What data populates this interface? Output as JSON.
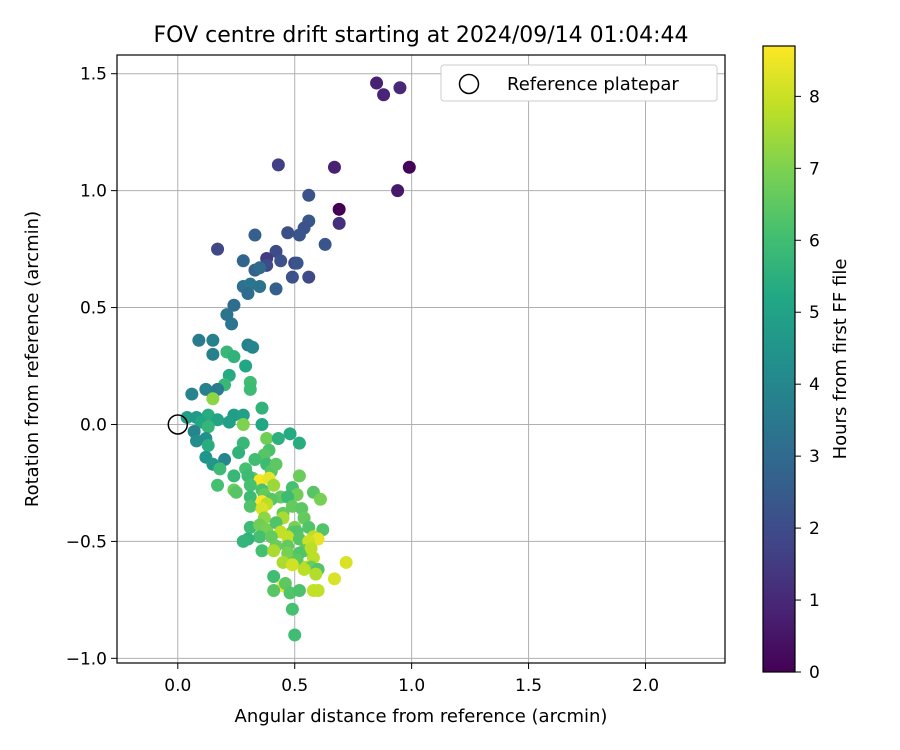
{
  "chart_data": {
    "type": "scatter",
    "title": "FOV centre drift starting at 2024/09/14 01:04:44",
    "xlabel": "Angular distance from reference (arcmin)",
    "ylabel": "Rotation from reference (arcmin)",
    "xlim": [
      -0.26,
      2.34
    ],
    "ylim": [
      -1.02,
      1.58
    ],
    "x_ticks": [
      "0.0",
      "0.5",
      "1.0",
      "1.5",
      "2.0"
    ],
    "x_tick_values": [
      0,
      0.5,
      1.0,
      1.5,
      2.0
    ],
    "y_ticks": [
      "−1.0",
      "−0.5",
      "0.0",
      "0.5",
      "1.0",
      "1.5"
    ],
    "y_tick_values": [
      -1.0,
      -0.5,
      0,
      0.5,
      1.0,
      1.5
    ],
    "grid": true,
    "legend": {
      "placement": "top-right",
      "label": "Reference platepar"
    },
    "reference_point": {
      "x": 0,
      "y": 0
    },
    "colorbar": {
      "label": "Hours from first FF file",
      "colormap": "viridis",
      "range": [
        0,
        8.7
      ],
      "ticks": [
        "0",
        "1",
        "2",
        "3",
        "4",
        "5",
        "6",
        "7",
        "8"
      ],
      "tick_values": [
        0,
        1,
        2,
        3,
        4,
        5,
        6,
        7,
        8
      ]
    },
    "points": [
      [
        0.69,
        0.92,
        0.0
      ],
      [
        0.99,
        1.1,
        0.1
      ],
      [
        0.94,
        1.0,
        0.6
      ],
      [
        0.85,
        1.46,
        0.8
      ],
      [
        0.88,
        1.41,
        0.9
      ],
      [
        0.95,
        1.44,
        1.0
      ],
      [
        0.67,
        1.1,
        0.8
      ],
      [
        0.69,
        0.86,
        1.2
      ],
      [
        0.43,
        1.11,
        1.6
      ],
      [
        0.56,
        0.98,
        2.2
      ],
      [
        0.47,
        0.82,
        2.1
      ],
      [
        0.56,
        0.87,
        2.4
      ],
      [
        0.54,
        0.84,
        2.2
      ],
      [
        0.52,
        0.81,
        2.3
      ],
      [
        0.63,
        0.77,
        2.3
      ],
      [
        0.17,
        0.75,
        1.9
      ],
      [
        0.42,
        0.74,
        2.0
      ],
      [
        0.38,
        0.71,
        1.5
      ],
      [
        0.38,
        0.68,
        2.0
      ],
      [
        0.44,
        0.7,
        2.2
      ],
      [
        0.5,
        0.69,
        1.8
      ],
      [
        0.51,
        0.69,
        2.3
      ],
      [
        0.33,
        0.81,
        2.6
      ],
      [
        0.28,
        0.7,
        2.8
      ],
      [
        0.33,
        0.66,
        2.7
      ],
      [
        0.35,
        0.67,
        3.0
      ],
      [
        0.35,
        0.59,
        3.3
      ],
      [
        0.49,
        0.63,
        2.2
      ],
      [
        0.56,
        0.63,
        1.9
      ],
      [
        0.28,
        0.59,
        3.2
      ],
      [
        0.31,
        0.6,
        3.4
      ],
      [
        0.42,
        0.58,
        2.6
      ],
      [
        0.3,
        0.56,
        3.1
      ],
      [
        0.24,
        0.51,
        3.1
      ],
      [
        0.21,
        0.47,
        3.3
      ],
      [
        0.23,
        0.43,
        3.4
      ],
      [
        0.09,
        0.36,
        3.6
      ],
      [
        0.15,
        0.36,
        3.8
      ],
      [
        0.3,
        0.34,
        3.8
      ],
      [
        0.32,
        0.33,
        3.9
      ],
      [
        0.15,
        0.3,
        3.8
      ],
      [
        0.21,
        0.31,
        5.8
      ],
      [
        0.24,
        0.29,
        5.6
      ],
      [
        0.29,
        0.25,
        5.2
      ],
      [
        0.22,
        0.21,
        5.3
      ],
      [
        0.2,
        0.17,
        5.8
      ],
      [
        0.31,
        0.18,
        6.0
      ],
      [
        0.31,
        0.15,
        5.9
      ],
      [
        0.12,
        0.15,
        3.8
      ],
      [
        0.17,
        0.15,
        3.6
      ],
      [
        0.06,
        0.13,
        3.9
      ],
      [
        0.15,
        0.11,
        7.2
      ],
      [
        0.36,
        0.07,
        5.6
      ],
      [
        0.13,
        0.04,
        5.4
      ],
      [
        0.24,
        0.04,
        4.8
      ],
      [
        0.28,
        0.04,
        4.9
      ],
      [
        0.04,
        0.03,
        4.9
      ],
      [
        0.08,
        0.03,
        4.7
      ],
      [
        0.17,
        0.02,
        5.1
      ],
      [
        0.1,
        0.01,
        5.2
      ],
      [
        0.22,
        0.01,
        4.9
      ],
      [
        0.28,
        0.0,
        7.0
      ],
      [
        0.36,
        0.0,
        5.2
      ],
      [
        0.13,
        -0.01,
        5.7
      ],
      [
        0.07,
        -0.03,
        3.9
      ],
      [
        0.48,
        -0.04,
        5.3
      ],
      [
        0.12,
        -0.06,
        4.3
      ],
      [
        0.38,
        -0.06,
        6.8
      ],
      [
        0.43,
        -0.06,
        5.5
      ],
      [
        0.08,
        -0.07,
        4.2
      ],
      [
        0.28,
        -0.08,
        5.8
      ],
      [
        0.52,
        -0.08,
        5.4
      ],
      [
        0.13,
        -0.09,
        5.4
      ],
      [
        0.39,
        -0.11,
        6.2
      ],
      [
        0.26,
        -0.12,
        5.6
      ],
      [
        0.37,
        -0.13,
        6.4
      ],
      [
        0.12,
        -0.14,
        4.5
      ],
      [
        0.2,
        -0.15,
        4.0
      ],
      [
        0.33,
        -0.15,
        6.0
      ],
      [
        0.15,
        -0.17,
        4.6
      ],
      [
        0.38,
        -0.17,
        5.9
      ],
      [
        0.29,
        -0.19,
        6.1
      ],
      [
        0.18,
        -0.19,
        5.9
      ],
      [
        0.4,
        -0.2,
        6.4
      ],
      [
        0.42,
        -0.17,
        6.5
      ],
      [
        0.24,
        -0.22,
        5.8
      ],
      [
        0.32,
        -0.23,
        6.5
      ],
      [
        0.35,
        -0.24,
        8.6
      ],
      [
        0.39,
        -0.23,
        8.4
      ],
      [
        0.3,
        -0.22,
        5.9
      ],
      [
        0.52,
        -0.22,
        6.7
      ],
      [
        0.17,
        -0.26,
        6.1
      ],
      [
        0.31,
        -0.26,
        6.1
      ],
      [
        0.41,
        -0.26,
        7.4
      ],
      [
        0.49,
        -0.27,
        6.1
      ],
      [
        0.24,
        -0.28,
        6.7
      ],
      [
        0.36,
        -0.28,
        6.2
      ],
      [
        0.25,
        -0.29,
        6.4
      ],
      [
        0.37,
        -0.3,
        6.6
      ],
      [
        0.51,
        -0.3,
        6.8
      ],
      [
        0.31,
        -0.31,
        5.9
      ],
      [
        0.44,
        -0.31,
        6.6
      ],
      [
        0.47,
        -0.31,
        5.9
      ],
      [
        0.4,
        -0.32,
        6.4
      ],
      [
        0.58,
        -0.29,
        6.4
      ],
      [
        0.61,
        -0.32,
        6.9
      ],
      [
        0.36,
        -0.33,
        8.7
      ],
      [
        0.38,
        -0.34,
        7.8
      ],
      [
        0.31,
        -0.35,
        6.3
      ],
      [
        0.49,
        -0.35,
        6.6
      ],
      [
        0.36,
        -0.36,
        8.2
      ],
      [
        0.53,
        -0.36,
        6.5
      ],
      [
        0.45,
        -0.38,
        6.6
      ],
      [
        0.37,
        -0.4,
        7.2
      ],
      [
        0.45,
        -0.4,
        7.6
      ],
      [
        0.54,
        -0.4,
        6.6
      ],
      [
        0.31,
        -0.44,
        5.9
      ],
      [
        0.35,
        -0.43,
        6.8
      ],
      [
        0.38,
        -0.45,
        6.9
      ],
      [
        0.42,
        -0.42,
        6.3
      ],
      [
        0.5,
        -0.44,
        6.9
      ],
      [
        0.56,
        -0.44,
        6.3
      ],
      [
        0.62,
        -0.45,
        6.3
      ],
      [
        0.44,
        -0.46,
        7.9
      ],
      [
        0.49,
        -0.46,
        6.5
      ],
      [
        0.51,
        -0.46,
        6.3
      ],
      [
        0.35,
        -0.48,
        6.1
      ],
      [
        0.47,
        -0.48,
        7.9
      ],
      [
        0.3,
        -0.49,
        5.6
      ],
      [
        0.4,
        -0.48,
        6.6
      ],
      [
        0.58,
        -0.48,
        7.8
      ],
      [
        0.52,
        -0.49,
        6.4
      ],
      [
        0.6,
        -0.49,
        8.4
      ],
      [
        0.56,
        -0.5,
        8.0
      ],
      [
        0.42,
        -0.52,
        6.7
      ],
      [
        0.47,
        -0.52,
        6.6
      ],
      [
        0.28,
        -0.5,
        5.7
      ],
      [
        0.54,
        -0.54,
        6.5
      ],
      [
        0.57,
        -0.53,
        7.8
      ],
      [
        0.36,
        -0.54,
        6.1
      ],
      [
        0.41,
        -0.54,
        7.6
      ],
      [
        0.47,
        -0.55,
        6.9
      ],
      [
        0.52,
        -0.55,
        6.3
      ],
      [
        0.58,
        -0.57,
        7.8
      ],
      [
        0.51,
        -0.58,
        6.5
      ],
      [
        0.72,
        -0.59,
        8.2
      ],
      [
        0.45,
        -0.59,
        7.6
      ],
      [
        0.49,
        -0.6,
        8.1
      ],
      [
        0.55,
        -0.61,
        7.8
      ],
      [
        0.57,
        -0.61,
        6.7
      ],
      [
        0.6,
        -0.62,
        6.3
      ],
      [
        0.54,
        -0.62,
        7.8
      ],
      [
        0.59,
        -0.64,
        7.7
      ],
      [
        0.41,
        -0.65,
        6.0
      ],
      [
        0.67,
        -0.66,
        8.2
      ],
      [
        0.45,
        -0.69,
        8.6
      ],
      [
        0.46,
        -0.68,
        6.5
      ],
      [
        0.41,
        -0.71,
        6.4
      ],
      [
        0.48,
        -0.72,
        6.3
      ],
      [
        0.52,
        -0.71,
        6.2
      ],
      [
        0.58,
        -0.71,
        7.9
      ],
      [
        0.6,
        -0.71,
        7.9
      ],
      [
        0.49,
        -0.79,
        6.1
      ],
      [
        0.5,
        -0.9,
        6.0
      ]
    ]
  }
}
